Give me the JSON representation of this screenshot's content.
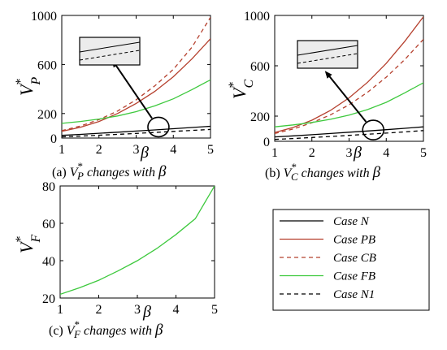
{
  "colors": {
    "case_N": "#000000",
    "case_PB": "#b5402e",
    "case_CB": "#b5402e",
    "case_FB": "#3ec93e",
    "case_N1": "#000000",
    "inset_fill": "#ececec"
  },
  "legend": {
    "items": [
      {
        "key": "case_N",
        "prefix": "Case ",
        "suffix": "N",
        "style": "solid"
      },
      {
        "key": "case_PB",
        "prefix": "Case ",
        "suffix": "PB",
        "style": "solid"
      },
      {
        "key": "case_CB",
        "prefix": "Case ",
        "suffix": "CB",
        "style": "dashed"
      },
      {
        "key": "case_FB",
        "prefix": "Case ",
        "suffix": "FB",
        "style": "solid"
      },
      {
        "key": "case_N1",
        "prefix": "Case ",
        "suffix": "N1",
        "style": "dashed"
      }
    ]
  },
  "chart_data": [
    {
      "id": "a",
      "type": "line",
      "caption_prefix": "(a) ",
      "caption_var": "V",
      "caption_star": "*",
      "caption_sub": "P",
      "caption_mid": " changes with ",
      "caption_beta": "β",
      "ylabel_var": "V",
      "ylabel_star": "*",
      "ylabel_sub": "P",
      "xlabel": "β",
      "xlim": [
        1,
        5
      ],
      "ylim": [
        0,
        1000
      ],
      "xticks": [
        "1",
        "2",
        "3",
        "4",
        "5"
      ],
      "yticks": [
        {
          "v": 0,
          "t": "0"
        },
        {
          "v": 200,
          "t": "200"
        },
        {
          "v": 600,
          "t": "600"
        },
        {
          "v": 1000,
          "t": "1000"
        }
      ],
      "x": [
        1,
        1.5,
        2,
        2.5,
        3,
        3.5,
        4,
        4.5,
        5
      ],
      "series": [
        {
          "key": "case_N",
          "dashed": false,
          "values": [
            22,
            30,
            39,
            48,
            57,
            66,
            76,
            86,
            96
          ]
        },
        {
          "key": "case_PB",
          "dashed": false,
          "values": [
            55,
            88,
            135,
            200,
            282,
            380,
            500,
            645,
            810
          ]
        },
        {
          "key": "case_CB",
          "dashed": true,
          "values": [
            60,
            98,
            150,
            220,
            312,
            425,
            560,
            740,
            985
          ]
        },
        {
          "key": "case_FB",
          "dashed": false,
          "values": [
            120,
            135,
            155,
            180,
            215,
            262,
            320,
            395,
            475
          ]
        },
        {
          "key": "case_N1",
          "dashed": true,
          "values": [
            10,
            16,
            23,
            30,
            38,
            46,
            54,
            62,
            70
          ]
        }
      ],
      "circle_at": {
        "x": 3.6,
        "y": 90
      },
      "arrow_tip": {
        "x": 2.35,
        "y": 640
      }
    },
    {
      "id": "b",
      "type": "line",
      "caption_prefix": "(b) ",
      "caption_var": "V",
      "caption_star": "*",
      "caption_sub": "C",
      "caption_mid": " changes with ",
      "caption_beta": "β",
      "ylabel_var": "V",
      "ylabel_star": "*",
      "ylabel_sub": "C",
      "xlabel": "β",
      "xlim": [
        1,
        5
      ],
      "ylim": [
        0,
        1000
      ],
      "xticks": [
        "1",
        "2",
        "3",
        "4",
        "5"
      ],
      "yticks": [
        {
          "v": 0,
          "t": "0"
        },
        {
          "v": 200,
          "t": "200"
        },
        {
          "v": 600,
          "t": "600"
        },
        {
          "v": 1000,
          "t": "1000"
        }
      ],
      "x": [
        1,
        1.5,
        2,
        2.5,
        3,
        3.5,
        4,
        4.5,
        5
      ],
      "series": [
        {
          "key": "case_N",
          "dashed": false,
          "values": [
            35,
            43,
            52,
            62,
            72,
            82,
            92,
            103,
            115
          ]
        },
        {
          "key": "case_PB",
          "dashed": false,
          "values": [
            70,
            110,
            168,
            245,
            345,
            470,
            620,
            795,
            990
          ]
        },
        {
          "key": "case_CB",
          "dashed": true,
          "values": [
            62,
            98,
            148,
            210,
            290,
            390,
            510,
            650,
            810
          ]
        },
        {
          "key": "case_FB",
          "dashed": false,
          "values": [
            115,
            130,
            150,
            175,
            208,
            252,
            310,
            385,
            465
          ]
        },
        {
          "key": "case_N1",
          "dashed": true,
          "values": [
            15,
            22,
            30,
            38,
            47,
            56,
            65,
            75,
            85
          ]
        }
      ],
      "circle_at": {
        "x": 3.65,
        "y": 90
      },
      "arrow_tip": {
        "x": 2.35,
        "y": 560
      }
    },
    {
      "id": "c",
      "type": "line",
      "caption_prefix": "(c) ",
      "caption_var": "V",
      "caption_star": "*",
      "caption_sub": "F",
      "caption_mid": " changes with ",
      "caption_beta": "β",
      "ylabel_var": "V",
      "ylabel_star": "*",
      "ylabel_sub": "F",
      "xlabel": "β",
      "xlim": [
        1,
        5
      ],
      "ylim": [
        20,
        80
      ],
      "xticks": [
        "1",
        "2",
        "3",
        "4",
        "5"
      ],
      "yticks": [
        {
          "v": 20,
          "t": "20"
        },
        {
          "v": 40,
          "t": "40"
        },
        {
          "v": 60,
          "t": "60"
        },
        {
          "v": 80,
          "t": "80"
        }
      ],
      "x": [
        1,
        1.5,
        2,
        2.5,
        3,
        3.5,
        4,
        4.5,
        5
      ],
      "series": [
        {
          "key": "case_FB",
          "dashed": false,
          "values": [
            22,
            25.5,
            29.5,
            34.5,
            40,
            46.5,
            54,
            62.5,
            80
          ]
        }
      ]
    }
  ]
}
